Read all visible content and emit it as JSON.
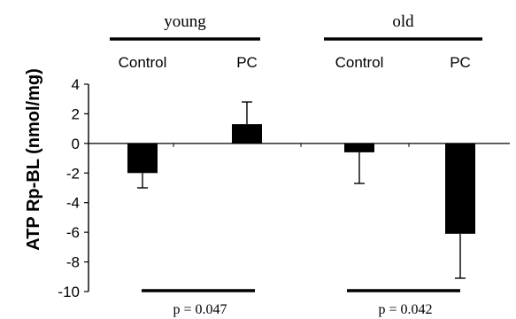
{
  "chart_data": {
    "type": "bar",
    "ylabel": "ATP Rp-BL (nmol/mg)",
    "ylim": [
      -10,
      4
    ],
    "yticks": [
      4,
      2,
      0,
      -2,
      -4,
      -6,
      -8,
      -10
    ],
    "groups": [
      {
        "label": "young",
        "categories": [
          "Control",
          "PC"
        ],
        "values": [
          -2.0,
          1.3
        ],
        "error_bars": [
          -3.0,
          2.8
        ],
        "p_value": "p = 0.047"
      },
      {
        "label": "old",
        "categories": [
          "Control",
          "PC"
        ],
        "values": [
          -0.6,
          -6.1
        ],
        "error_bars": [
          -2.7,
          -9.1
        ],
        "p_value": "p = 0.042"
      }
    ],
    "colors": {
      "bar": "#000000",
      "axis": "#000000",
      "background": "#ffffff"
    },
    "grid": false,
    "legend": false
  }
}
